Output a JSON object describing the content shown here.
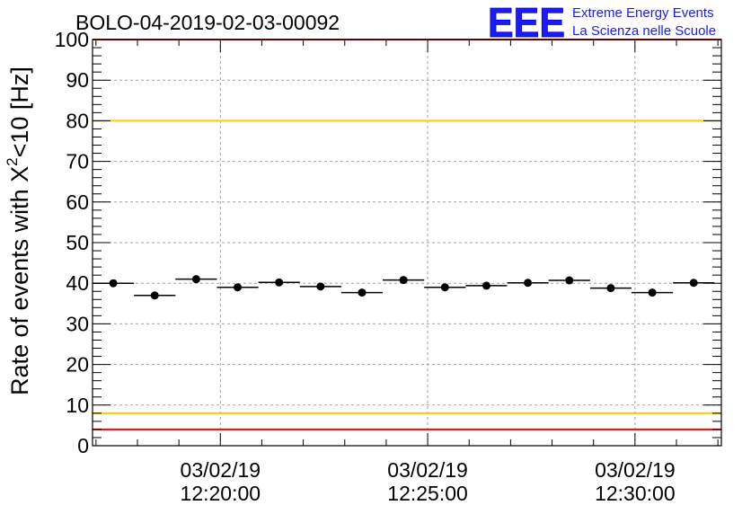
{
  "chart_data": {
    "type": "scatter",
    "title": "BOLO-04-2019-02-03-00092",
    "ylabel_prefix": "Rate of events with ",
    "ylabel_symbol": "X",
    "ylabel_superscript": "2",
    "ylabel_suffix": "<10 [Hz]",
    "ylim": [
      0,
      100
    ],
    "y_ticks": [
      0,
      10,
      20,
      30,
      40,
      50,
      60,
      70,
      80,
      90,
      100
    ],
    "y_tick_labels": [
      "0",
      "10",
      "20",
      "30",
      "40",
      "50",
      "60",
      "70",
      "80",
      "90",
      "100"
    ],
    "xlim": [
      "2019-02-03T12:16:55",
      "2019-02-03T12:32:05"
    ],
    "x_ticks": [
      {
        "time": "2019-02-03T12:20:00",
        "date_label": "03/02/19",
        "time_label": "12:20:00"
      },
      {
        "time": "2019-02-03T12:25:00",
        "date_label": "03/02/19",
        "time_label": "12:25:00"
      },
      {
        "time": "2019-02-03T12:30:00",
        "date_label": "03/02/19",
        "time_label": "12:30:00"
      }
    ],
    "bin_width_seconds": 60,
    "x": [
      "2019-02-03T12:17:25",
      "2019-02-03T12:18:25",
      "2019-02-03T12:19:25",
      "2019-02-03T12:20:25",
      "2019-02-03T12:21:25",
      "2019-02-03T12:22:25",
      "2019-02-03T12:23:25",
      "2019-02-03T12:24:25",
      "2019-02-03T12:25:25",
      "2019-02-03T12:26:25",
      "2019-02-03T12:27:25",
      "2019-02-03T12:28:25",
      "2019-02-03T12:29:25",
      "2019-02-03T12:30:25",
      "2019-02-03T12:31:25"
    ],
    "values": [
      40.0,
      37.0,
      41.0,
      39.0,
      40.2,
      39.2,
      37.7,
      40.8,
      39.0,
      39.4,
      40.1,
      40.7,
      38.8,
      37.7,
      40.1
    ],
    "reference_lines": [
      {
        "y": 80,
        "color": "#ffcc00"
      },
      {
        "y": 8,
        "color": "#ffcc00"
      },
      {
        "y": 100,
        "color": "#ff0000"
      },
      {
        "y": 4,
        "color": "#ff0000"
      }
    ],
    "grid": true
  },
  "logo": {
    "text": "EEE",
    "line1": "Extreme Energy Events",
    "line2": "La Scienza nelle Scuole",
    "color": "#1a1aff"
  }
}
